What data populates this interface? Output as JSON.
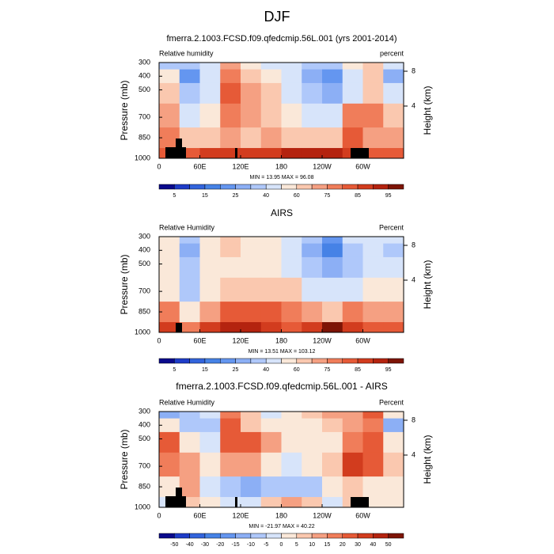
{
  "title": "DJF",
  "chart_data": [
    {
      "type": "contour",
      "title": "fmerra.2.1003.FCSD.f09.qfedcmip.56L.001 (yrs 2001-2014)",
      "left_label": "Relative humidity",
      "right_label": "percent",
      "ylabel": "Pressure (mb)",
      "y2label": "Height (km)",
      "xlim": [
        0,
        360
      ],
      "xticks": [
        0,
        {
          "value": 60,
          "label": "60E"
        },
        {
          "value": 120,
          "label": "120E"
        },
        180,
        {
          "value": 240,
          "label": "120W"
        },
        {
          "value": 300,
          "label": "60W"
        }
      ],
      "ylim": [
        1000,
        300
      ],
      "yticks": [
        300,
        400,
        500,
        700,
        850,
        1000
      ],
      "y2lim": [
        -2,
        9
      ],
      "y2ticks": [
        4,
        8
      ],
      "stats": "MIN = 13.95  MAX = 96.08",
      "field": {
        "lon": [
          15,
          45,
          75,
          105,
          135,
          165,
          195,
          225,
          255,
          285,
          315,
          345
        ],
        "levels": [
          300,
          400,
          500,
          700,
          850,
          1000
        ],
        "values": [
          [
            35,
            30,
            45,
            70,
            55,
            45,
            45,
            35,
            30,
            50,
            65,
            40
          ],
          [
            55,
            20,
            40,
            75,
            60,
            50,
            40,
            25,
            20,
            40,
            60,
            25
          ],
          [
            65,
            30,
            45,
            80,
            70,
            60,
            45,
            30,
            25,
            45,
            65,
            45
          ],
          [
            70,
            45,
            55,
            75,
            70,
            65,
            55,
            45,
            40,
            75,
            75,
            60
          ],
          [
            75,
            65,
            65,
            70,
            65,
            70,
            65,
            60,
            60,
            80,
            70,
            70
          ],
          [
            80,
            80,
            85,
            85,
            85,
            88,
            90,
            90,
            90,
            88,
            80,
            80
          ]
        ]
      },
      "contour_levels": [
        5,
        10,
        15,
        20,
        25,
        30,
        40,
        50,
        60,
        70,
        75,
        80,
        85,
        90,
        95
      ],
      "colorbar_ticks": [
        5,
        15,
        25,
        40,
        60,
        75,
        85,
        95
      ],
      "colors": [
        "#0a0a8c",
        "#1e3cc8",
        "#3264dc",
        "#4682e6",
        "#6496f0",
        "#8caff5",
        "#afc8fa",
        "#d7e4fa",
        "#fae8d9",
        "#fac8af",
        "#f5a082",
        "#f07d5a",
        "#e65a37",
        "#d23c1e",
        "#b4230f",
        "#7d1405"
      ]
    },
    {
      "type": "contour",
      "title": "AIRS",
      "left_label": "Relative Humidity",
      "right_label": "Percent",
      "ylabel": "Pressure (mb)",
      "y2label": "Height (km)",
      "xlim": [
        0,
        360
      ],
      "xticks": [
        0,
        {
          "value": 60,
          "label": "60E"
        },
        {
          "value": 120,
          "label": "120E"
        },
        180,
        {
          "value": 240,
          "label": "120W"
        },
        {
          "value": 300,
          "label": "60W"
        }
      ],
      "ylim": [
        1000,
        300
      ],
      "yticks": [
        300,
        400,
        500,
        700,
        850,
        1000
      ],
      "y2lim": [
        -2,
        9
      ],
      "y2ticks": [
        4,
        8
      ],
      "stats": "MIN = 13.51  MAX = 103.12",
      "field": {
        "lon": [
          15,
          45,
          75,
          105,
          135,
          165,
          195,
          225,
          255,
          285,
          315,
          345
        ],
        "levels": [
          300,
          400,
          500,
          700,
          850,
          1000
        ],
        "values": [
          [
            55,
            35,
            55,
            60,
            55,
            50,
            45,
            30,
            20,
            40,
            45,
            40
          ],
          [
            55,
            25,
            55,
            60,
            55,
            50,
            40,
            25,
            15,
            35,
            45,
            35
          ],
          [
            50,
            30,
            50,
            55,
            50,
            50,
            45,
            30,
            25,
            35,
            45,
            45
          ],
          [
            50,
            35,
            55,
            65,
            60,
            65,
            60,
            45,
            40,
            45,
            55,
            55
          ],
          [
            75,
            55,
            70,
            80,
            80,
            80,
            75,
            70,
            65,
            75,
            70,
            70
          ],
          [
            85,
            75,
            85,
            90,
            90,
            85,
            80,
            85,
            95,
            85,
            80,
            80
          ]
        ]
      },
      "contour_levels": [
        5,
        10,
        15,
        20,
        25,
        30,
        40,
        50,
        60,
        70,
        75,
        80,
        85,
        90,
        95
      ],
      "colorbar_ticks": [
        5,
        15,
        25,
        40,
        60,
        75,
        85,
        95
      ],
      "colors": [
        "#0a0a8c",
        "#1e3cc8",
        "#3264dc",
        "#4682e6",
        "#6496f0",
        "#8caff5",
        "#afc8fa",
        "#d7e4fa",
        "#fae8d9",
        "#fac8af",
        "#f5a082",
        "#f07d5a",
        "#e65a37",
        "#d23c1e",
        "#b4230f",
        "#7d1405"
      ]
    },
    {
      "type": "contour",
      "title": "fmerra.2.1003.FCSD.f09.qfedcmip.56L.001 - AIRS",
      "left_label": "Relative Humidity",
      "right_label": "Percent",
      "ylabel": "Pressure (mb)",
      "y2label": "Height (km)",
      "xlim": [
        0,
        360
      ],
      "xticks": [
        0,
        {
          "value": 60,
          "label": "60E"
        },
        {
          "value": 120,
          "label": "120E"
        },
        180,
        {
          "value": 240,
          "label": "120W"
        },
        {
          "value": 300,
          "label": "60W"
        }
      ],
      "ylim": [
        1000,
        300
      ],
      "yticks": [
        300,
        400,
        500,
        700,
        850,
        1000
      ],
      "y2lim": [
        -2,
        9
      ],
      "y2ticks": [
        4,
        8
      ],
      "stats": "MIN = -21.97  MAX = 40.22",
      "field": {
        "lon": [
          15,
          45,
          75,
          105,
          135,
          165,
          195,
          225,
          255,
          285,
          315,
          345
        ],
        "levels": [
          300,
          400,
          500,
          700,
          850,
          1000
        ],
        "values": [
          [
            -15,
            -10,
            -5,
            15,
            5,
            -5,
            0,
            5,
            10,
            10,
            20,
            0
          ],
          [
            0,
            -10,
            -10,
            20,
            5,
            0,
            0,
            0,
            5,
            10,
            15,
            -15
          ],
          [
            20,
            0,
            -5,
            25,
            20,
            10,
            0,
            0,
            0,
            15,
            20,
            0
          ],
          [
            15,
            10,
            0,
            10,
            10,
            0,
            -5,
            0,
            5,
            30,
            20,
            5
          ],
          [
            0,
            10,
            -5,
            -10,
            -15,
            -10,
            -10,
            -10,
            0,
            5,
            0,
            0
          ],
          [
            -5,
            5,
            0,
            -5,
            -5,
            5,
            10,
            5,
            -5,
            5,
            0,
            0
          ]
        ]
      },
      "contour_levels": [
        -50,
        -40,
        -30,
        -20,
        -15,
        -10,
        -5,
        0,
        5,
        10,
        15,
        20,
        30,
        40,
        50
      ],
      "colorbar_ticks": [
        -50,
        -40,
        -30,
        -20,
        -15,
        -10,
        -5,
        0,
        5,
        10,
        15,
        20,
        30,
        40,
        50
      ],
      "colors": [
        "#0a0a8c",
        "#1e3cc8",
        "#3264dc",
        "#4682e6",
        "#6496f0",
        "#8caff5",
        "#afc8fa",
        "#d7e4fa",
        "#fae8d9",
        "#fac8af",
        "#f5a082",
        "#f07d5a",
        "#e65a37",
        "#d23c1e",
        "#b4230f",
        "#7d1405"
      ]
    }
  ]
}
